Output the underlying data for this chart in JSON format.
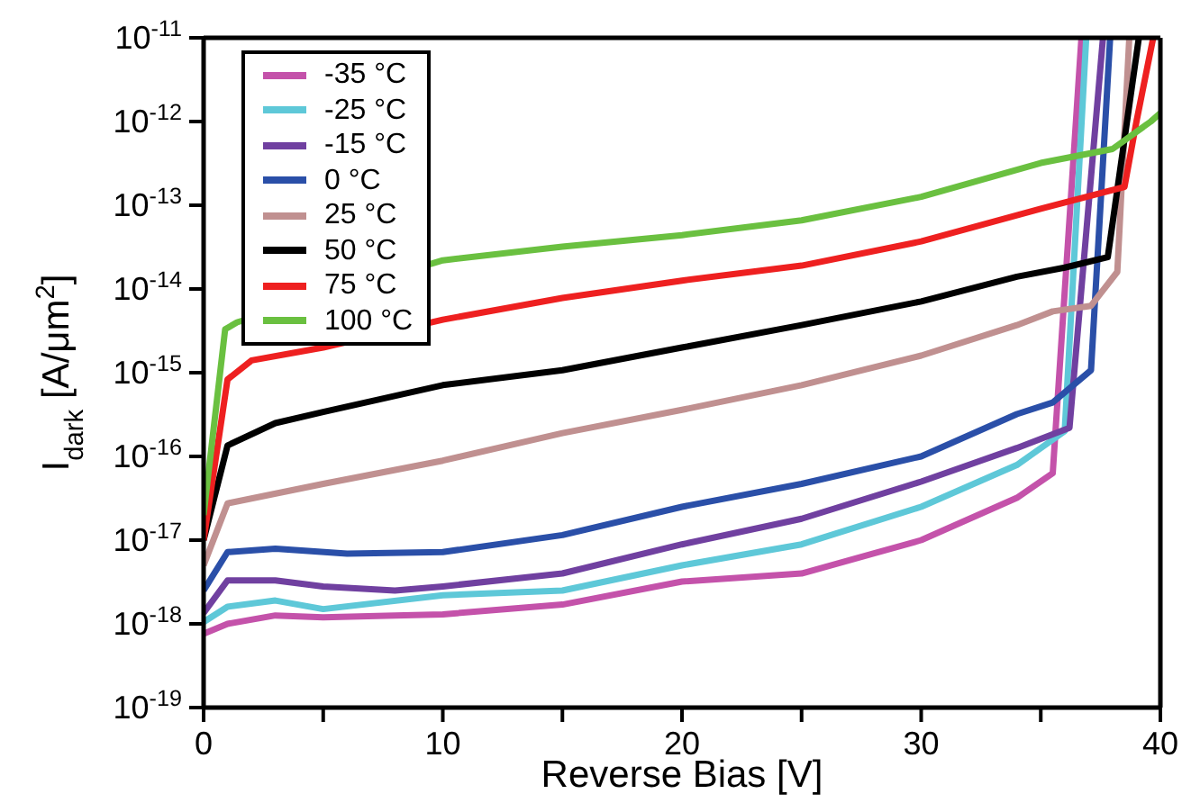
{
  "chart_data": {
    "type": "line",
    "xlabel": "Reverse Bias [V]",
    "ylabel": "I$_{dark}$ [A/μm$^{2}$]",
    "log": "y",
    "xlim": [
      0,
      40
    ],
    "ylim": [
      1e-19,
      1e-11
    ],
    "xticks": [
      0,
      {
        "value": 5,
        "label": null
      },
      10,
      {
        "value": 15,
        "label": null
      },
      20,
      {
        "value": 25,
        "label": null
      },
      30,
      {
        "value": 35,
        "label": null
      },
      40
    ],
    "yticks": [
      {
        "value": 1e-19,
        "label": "10$^{-19}$"
      },
      {
        "value": 1e-18,
        "label": "10$^{-18}$"
      },
      {
        "value": 1e-17,
        "label": "10$^{-17}$"
      },
      {
        "value": 1e-16,
        "label": "10$^{-16}$"
      },
      {
        "value": 1e-15,
        "label": "10$^{-15}$"
      },
      {
        "value": 1e-14,
        "label": "10$^{-14}$"
      },
      {
        "value": 1e-13,
        "label": "10$^{-13}$"
      },
      {
        "value": 1e-12,
        "label": "10$^{-12}$"
      },
      {
        "value": 1e-11,
        "label": "10$^{-11}$"
      }
    ],
    "grid": false,
    "legend": "top left",
    "marker": "none",
    "line_style": "solid",
    "series": [
      {
        "name": "-35 °C",
        "color": "#c452aa",
        "x": [
          0,
          1,
          3,
          5,
          8,
          10,
          15,
          20,
          25,
          28,
          30,
          34,
          35.5,
          36.7
        ],
        "values": [
          7.6e-19,
          1e-18,
          1.26e-18,
          1.2e-18,
          1.26e-18,
          1.3e-18,
          1.7e-18,
          3.2e-18,
          4e-18,
          6.9e-18,
          1e-17,
          3.2e-17,
          6.3e-17,
          1e-11
        ]
      },
      {
        "name": "-25 °C",
        "color": "#5ec8d8",
        "x": [
          0,
          1,
          3,
          5,
          10,
          15,
          20,
          25,
          30,
          34,
          36,
          36.9
        ],
        "values": [
          1.05e-18,
          1.6e-18,
          1.9e-18,
          1.5e-18,
          2.2e-18,
          2.5e-18,
          5e-18,
          8.9e-18,
          2.5e-17,
          7.9e-17,
          2e-16,
          1e-11
        ]
      },
      {
        "name": "-15 °C",
        "color": "#7040a0",
        "x": [
          0,
          1,
          3,
          5,
          8,
          10,
          15,
          20,
          25,
          30,
          34,
          36.2,
          37.6
        ],
        "values": [
          1.35e-18,
          3.3e-18,
          3.3e-18,
          2.8e-18,
          2.5e-18,
          2.8e-18,
          4e-18,
          8.9e-18,
          1.8e-17,
          5e-17,
          1.26e-16,
          2.2e-16,
          1e-11
        ]
      },
      {
        "name": "0 °C",
        "color": "#2a4fa8",
        "x": [
          0,
          1,
          3,
          6,
          10,
          15,
          20,
          25,
          30,
          34,
          35.5,
          37.1,
          37.9
        ],
        "values": [
          2.5e-18,
          7.2e-18,
          7.9e-18,
          6.9e-18,
          7.2e-18,
          1.15e-17,
          2.5e-17,
          4.7e-17,
          1e-16,
          3.2e-16,
          4.4e-16,
          1.07e-15,
          1e-11
        ]
      },
      {
        "name": "25 °C",
        "color": "#c09090",
        "x": [
          0,
          1,
          5,
          10,
          15,
          20,
          25,
          30,
          34,
          35.5,
          37.1,
          38.2,
          38.7
        ],
        "values": [
          5e-18,
          2.75e-17,
          4.7e-17,
          8.9e-17,
          1.9e-16,
          3.6e-16,
          7.1e-16,
          1.6e-15,
          3.7e-15,
          5.4e-15,
          6.3e-15,
          1.6e-14,
          1e-11
        ]
      },
      {
        "name": "50 °C",
        "color": "#000000",
        "x": [
          0,
          1,
          3,
          5,
          10,
          15,
          20,
          25,
          30,
          34,
          36,
          37.8,
          39.1
        ],
        "values": [
          1e-17,
          1.35e-16,
          2.5e-16,
          3.4e-16,
          7.1e-16,
          1.07e-15,
          2e-15,
          3.7e-15,
          7.1e-15,
          1.4e-14,
          1.8e-14,
          2.4e-14,
          1e-11
        ]
      },
      {
        "name": "75 °C",
        "color": "#ee2020",
        "x": [
          0,
          1,
          2,
          5,
          10,
          15,
          20,
          25,
          30,
          35,
          38.5,
          39,
          39.7
        ],
        "values": [
          1e-17,
          8.3e-16,
          1.4e-15,
          2e-15,
          4.3e-15,
          7.8e-15,
          1.26e-14,
          1.9e-14,
          3.7e-14,
          9.1e-14,
          1.66e-13,
          1e-12,
          1e-11
        ]
      },
      {
        "name": "100 °C",
        "color": "#6ac040",
        "x": [
          0,
          0.9,
          1.4,
          10,
          15,
          20,
          25,
          30,
          35,
          38,
          39.6,
          40
        ],
        "values": [
          2e-17,
          3.3e-15,
          4e-15,
          2.2e-14,
          3.2e-14,
          4.4e-14,
          6.6e-14,
          1.26e-13,
          3.2e-13,
          4.7e-13,
          1e-12,
          1.26e-12
        ]
      }
    ]
  }
}
